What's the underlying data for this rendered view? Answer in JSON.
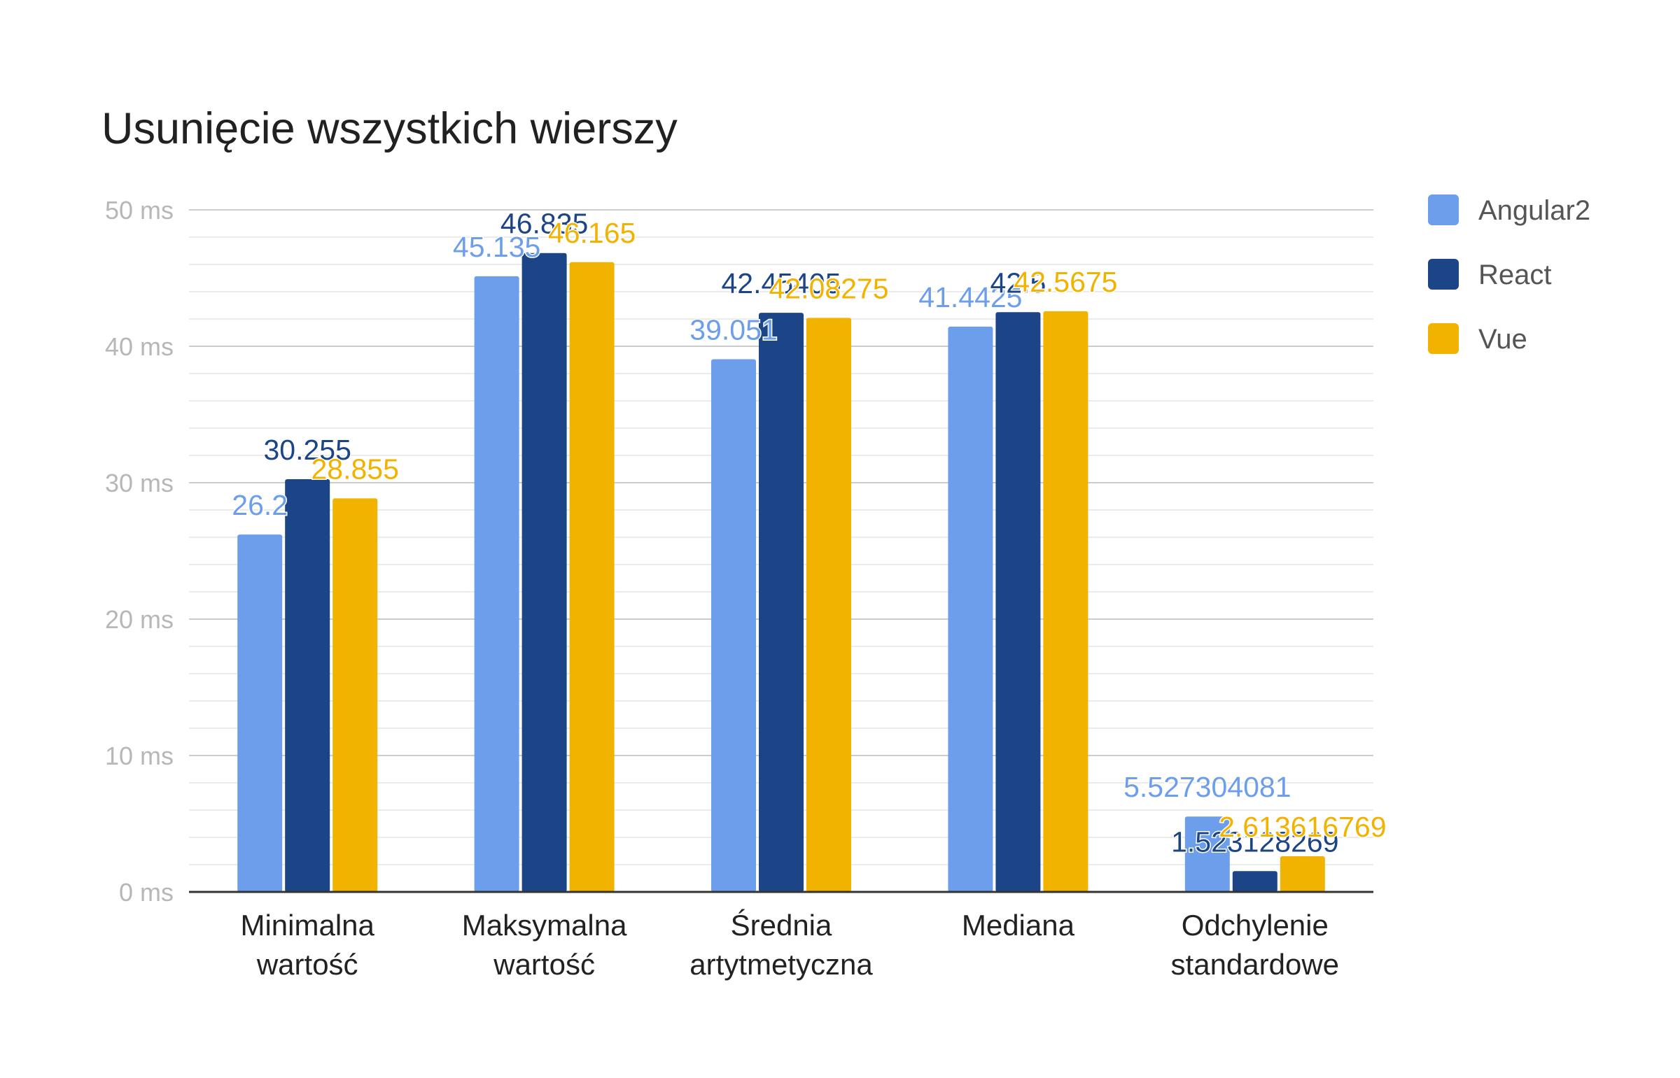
{
  "chart_data": {
    "type": "bar",
    "title": "Usunięcie wszystkich wierszy",
    "xlabel": "",
    "ylabel": "",
    "categories": [
      [
        "Minimalna",
        "wartość"
      ],
      [
        "Maksymalna",
        "wartość"
      ],
      [
        "Średnia",
        "artytmetyczna"
      ],
      [
        "Mediana"
      ],
      [
        "Odchylenie",
        "standardowe"
      ]
    ],
    "series": [
      {
        "name": "Angular2",
        "color": "#6d9eeb",
        "values": [
          26.2,
          45.135,
          39.051,
          41.4425,
          5.527304081
        ],
        "labels": [
          "26.2",
          "45.135",
          "39.051",
          "41.4425",
          "5.527304081"
        ]
      },
      {
        "name": "React",
        "color": "#1c4587",
        "values": [
          30.255,
          46.835,
          42.45405,
          42.5,
          1.523128269
        ],
        "labels": [
          "30.255",
          "46.835",
          "42.45405",
          "42.5",
          "1.523128269"
        ]
      },
      {
        "name": "Vue",
        "color": "#f1b300",
        "values": [
          28.855,
          46.165,
          42.08275,
          42.5675,
          2.613616769
        ],
        "labels": [
          "28.855",
          "46.165",
          "42.08275",
          "42.5675",
          "2.613616769"
        ]
      }
    ],
    "ylim": [
      0,
      50
    ],
    "yticks": [
      0,
      10,
      20,
      30,
      40,
      50
    ],
    "ytick_labels": [
      "0 ms",
      "10 ms",
      "20 ms",
      "30 ms",
      "40 ms",
      "50 ms"
    ],
    "minor_gridlines": true,
    "grid": true,
    "legend_position": "right"
  }
}
